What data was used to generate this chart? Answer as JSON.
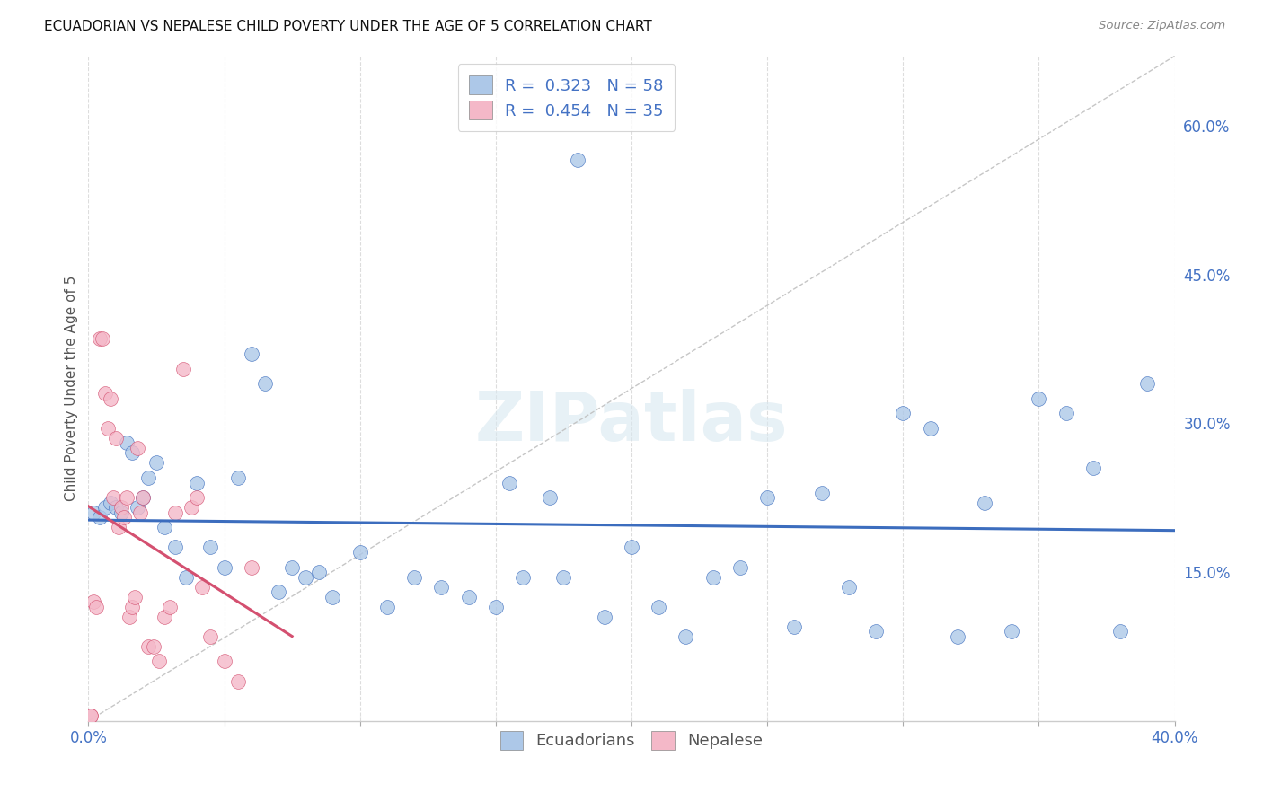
{
  "title": "ECUADORIAN VS NEPALESE CHILD POVERTY UNDER THE AGE OF 5 CORRELATION CHART",
  "source": "Source: ZipAtlas.com",
  "ylabel": "Child Poverty Under the Age of 5",
  "xlim": [
    0.0,
    0.4
  ],
  "ylim": [
    0.0,
    0.67
  ],
  "xticks": [
    0.0,
    0.05,
    0.1,
    0.15,
    0.2,
    0.25,
    0.3,
    0.35,
    0.4
  ],
  "yticks_right": [
    0.15,
    0.3,
    0.45,
    0.6
  ],
  "ytick_right_labels": [
    "15.0%",
    "30.0%",
    "45.0%",
    "60.0%"
  ],
  "R_ecuador": 0.323,
  "N_ecuador": 58,
  "R_nepal": 0.454,
  "N_nepal": 35,
  "color_ecuador": "#adc8e8",
  "color_nepal": "#f4b8c8",
  "line_color_ecuador": "#3c6dbe",
  "line_color_nepal": "#d45070",
  "watermark": "ZIPatlas",
  "ecuador_x": [
    0.002,
    0.004,
    0.006,
    0.008,
    0.01,
    0.012,
    0.014,
    0.016,
    0.018,
    0.02,
    0.022,
    0.025,
    0.028,
    0.032,
    0.036,
    0.04,
    0.045,
    0.05,
    0.055,
    0.06,
    0.065,
    0.07,
    0.075,
    0.08,
    0.085,
    0.09,
    0.1,
    0.11,
    0.12,
    0.13,
    0.14,
    0.15,
    0.155,
    0.16,
    0.17,
    0.175,
    0.18,
    0.19,
    0.2,
    0.21,
    0.22,
    0.23,
    0.24,
    0.25,
    0.26,
    0.27,
    0.28,
    0.29,
    0.3,
    0.31,
    0.32,
    0.33,
    0.34,
    0.35,
    0.36,
    0.37,
    0.38,
    0.39
  ],
  "ecuador_y": [
    0.21,
    0.205,
    0.215,
    0.22,
    0.215,
    0.21,
    0.28,
    0.27,
    0.215,
    0.225,
    0.245,
    0.26,
    0.195,
    0.175,
    0.145,
    0.24,
    0.175,
    0.155,
    0.245,
    0.37,
    0.34,
    0.13,
    0.155,
    0.145,
    0.15,
    0.125,
    0.17,
    0.115,
    0.145,
    0.135,
    0.125,
    0.115,
    0.24,
    0.145,
    0.225,
    0.145,
    0.565,
    0.105,
    0.175,
    0.115,
    0.085,
    0.145,
    0.155,
    0.225,
    0.095,
    0.23,
    0.135,
    0.09,
    0.31,
    0.295,
    0.085,
    0.22,
    0.09,
    0.325,
    0.31,
    0.255,
    0.09,
    0.34
  ],
  "nepal_x": [
    0.001,
    0.002,
    0.003,
    0.004,
    0.005,
    0.006,
    0.007,
    0.008,
    0.009,
    0.01,
    0.011,
    0.012,
    0.013,
    0.014,
    0.015,
    0.016,
    0.017,
    0.018,
    0.019,
    0.02,
    0.022,
    0.024,
    0.026,
    0.028,
    0.03,
    0.032,
    0.035,
    0.038,
    0.04,
    0.042,
    0.045,
    0.05,
    0.055,
    0.06,
    0.001
  ],
  "nepal_y": [
    0.005,
    0.12,
    0.115,
    0.385,
    0.385,
    0.33,
    0.295,
    0.325,
    0.225,
    0.285,
    0.195,
    0.215,
    0.205,
    0.225,
    0.105,
    0.115,
    0.125,
    0.275,
    0.21,
    0.225,
    0.075,
    0.075,
    0.06,
    0.105,
    0.115,
    0.21,
    0.355,
    0.215,
    0.225,
    0.135,
    0.085,
    0.06,
    0.04,
    0.155,
    0.005
  ]
}
